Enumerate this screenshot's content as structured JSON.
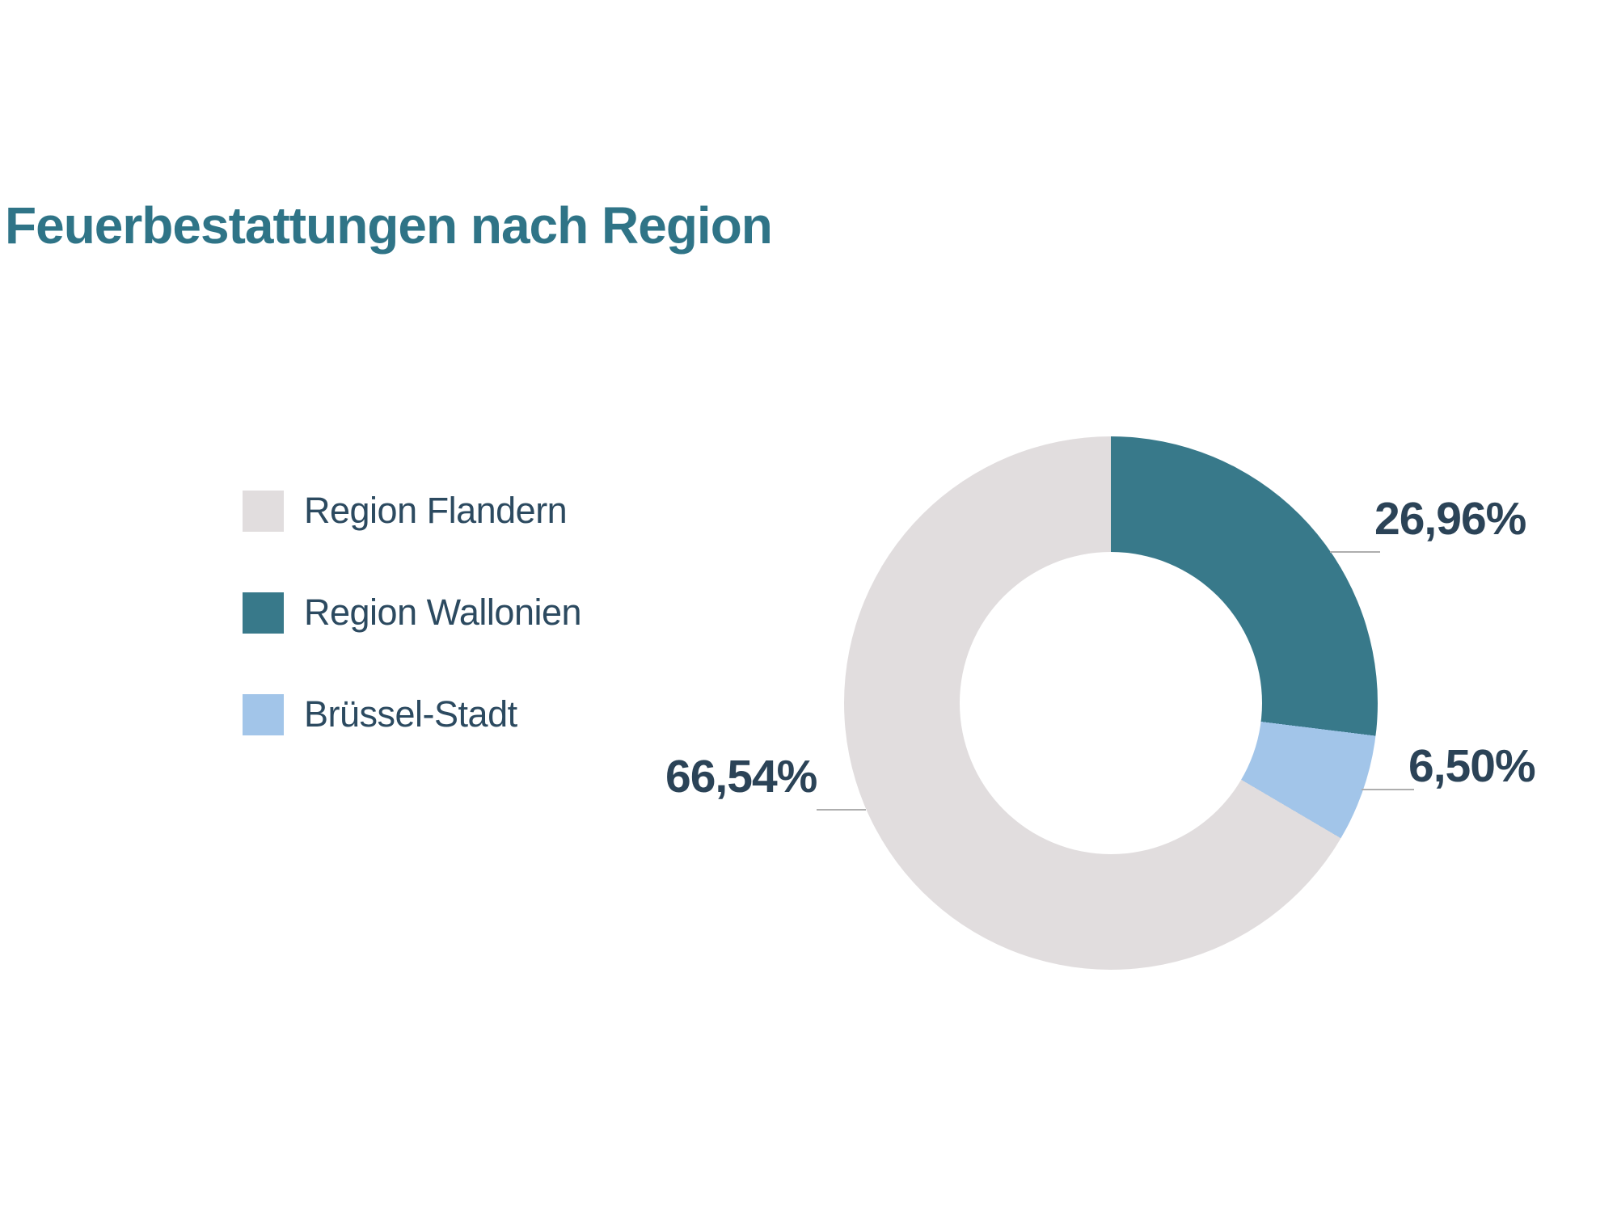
{
  "page": {
    "background": "#ffffff"
  },
  "title": {
    "text": "Feuerbestattungen nach Region",
    "color": "#2F7487"
  },
  "legend": {
    "position": "left",
    "items": [
      {
        "label": "Region Flandern",
        "color": "#E1DDDE"
      },
      {
        "label": "Region Wallonien",
        "color": "#38798A"
      },
      {
        "label": "Brüssel-Stadt",
        "color": "#A2C5E9"
      }
    ]
  },
  "chart_data": {
    "type": "pie",
    "subtype": "donut",
    "title": "Feuerbestattungen nach Region",
    "start_angle_deg": 0,
    "direction": "clockwise",
    "inner_radius_ratio": 0.57,
    "legend_position": "left",
    "slices": [
      {
        "name": "Region Wallonien",
        "value": 26.96,
        "display": "26,96%",
        "color": "#38798A"
      },
      {
        "name": "Brüssel-Stadt",
        "value": 6.5,
        "display": "6,50%",
        "color": "#A2C5E9"
      },
      {
        "name": "Region Flandern",
        "value": 66.54,
        "display": "66,54%",
        "color": "#E1DDDE"
      }
    ],
    "colors": {
      "label_text": "#2B4357",
      "leader_line": "#AEAEAE"
    }
  }
}
